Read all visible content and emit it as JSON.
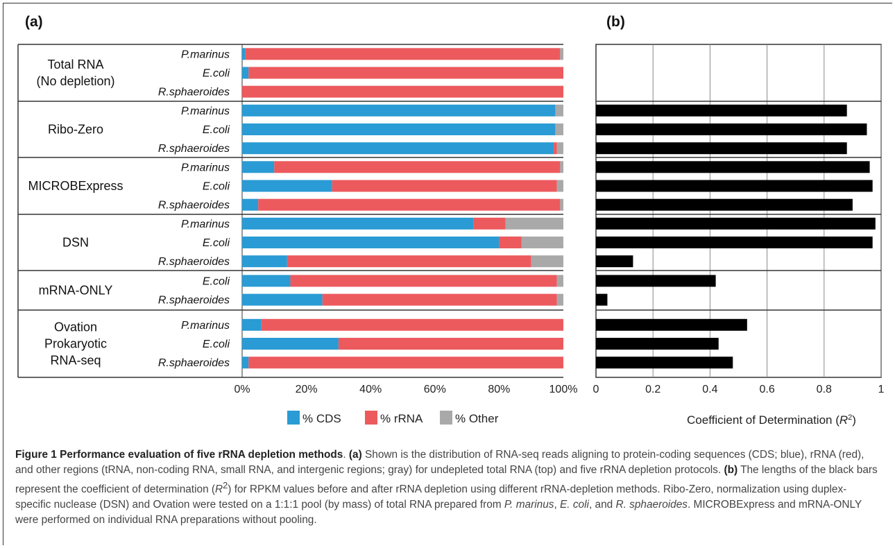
{
  "panel_a_label": "(a)",
  "panel_b_label": "(b)",
  "caption": {
    "title": "Figure 1 Performance evaluation of five rRNA depletion methods",
    "title_end": ".",
    "a_tag": "(a)",
    "text_a": " Shown is the distribution of RNA-seq reads aligning to protein-coding sequences (CDS; blue), rRNA (red), and other regions (tRNA, non-coding RNA, small RNA, and intergenic regions; gray) for undepleted total RNA (top) and five rRNA depletion protocols. ",
    "b_tag": "(b)",
    "text_b1": " The lengths of the black bars represent the coefficient of determination (",
    "r2_r": "R",
    "r2_sup": "2",
    "text_b2": ") for RPKM values before and after rRNA depletion using different rRNA-depletion methods. Ribo-Zero, normalization using duplex-specific nuclease (DSN) and Ovation were tested on a 1:1:1 pool (by mass) of total RNA prepared from ",
    "sp1": "P. marinus",
    "sep1": ", ",
    "sp2": "E. coli",
    "sep2": ", and ",
    "sp3": "R. sphaeroides",
    "text_c": ". MICROBExpress and mRNA-ONLY were performed on individual RNA preparations without pooling."
  },
  "colors": {
    "cds": "#2a9bd4",
    "rrna": "#ec5a5e",
    "other": "#a9a9a9",
    "r2": "#000000",
    "grid": "#888888",
    "border": "#333333"
  },
  "chart_data": [
    {
      "type": "bar",
      "orientation": "horizontal",
      "stacked": true,
      "x_tick_labels": [
        "0%",
        "20%",
        "40%",
        "60%",
        "80%",
        "100%"
      ],
      "xlim": [
        0,
        100
      ],
      "legend_position": "bottom",
      "groups": [
        {
          "label_lines": [
            "Total RNA",
            "(No depletion)"
          ],
          "rows": [
            {
              "species": "P.marinus",
              "cds": 1,
              "rrna": 98,
              "other": 1
            },
            {
              "species": "E.coli",
              "cds": 2,
              "rrna": 98,
              "other": 0
            },
            {
              "species": "R.sphaeroides",
              "cds": 0,
              "rrna": 100,
              "other": 0
            }
          ]
        },
        {
          "label_lines": [
            "Ribo-Zero"
          ],
          "rows": [
            {
              "species": "P.marinus",
              "cds": 97.5,
              "rrna": 0,
              "other": 2.5
            },
            {
              "species": "E.coli",
              "cds": 97.5,
              "rrna": 0,
              "other": 2.5
            },
            {
              "species": "R.sphaeroides",
              "cds": 97,
              "rrna": 1,
              "other": 2
            }
          ]
        },
        {
          "label_lines": [
            "MICROBExpress"
          ],
          "rows": [
            {
              "species": "P.marinus",
              "cds": 10,
              "rrna": 89,
              "other": 1
            },
            {
              "species": "E.coli",
              "cds": 28,
              "rrna": 70,
              "other": 2
            },
            {
              "species": "R.sphaeroides",
              "cds": 5,
              "rrna": 94,
              "other": 1
            }
          ]
        },
        {
          "label_lines": [
            "DSN"
          ],
          "rows": [
            {
              "species": "P.marinus",
              "cds": 72,
              "rrna": 10,
              "other": 18
            },
            {
              "species": "E.coli",
              "cds": 80,
              "rrna": 7,
              "other": 13
            },
            {
              "species": "R.sphaeroides",
              "cds": 14,
              "rrna": 76,
              "other": 10
            }
          ]
        },
        {
          "label_lines": [
            "mRNA-ONLY"
          ],
          "rows": [
            {
              "species": "E.coli",
              "cds": 15,
              "rrna": 83,
              "other": 2
            },
            {
              "species": "R.sphaeroides",
              "cds": 25,
              "rrna": 73,
              "other": 2
            }
          ]
        },
        {
          "label_lines": [
            "Ovation",
            "Prokaryotic",
            "RNA-seq"
          ],
          "rows": [
            {
              "species": "P.marinus",
              "cds": 6,
              "rrna": 94,
              "other": 0
            },
            {
              "species": "E.coli",
              "cds": 30,
              "rrna": 70,
              "other": 0
            },
            {
              "species": "R.sphaeroides",
              "cds": 2,
              "rrna": 98,
              "other": 0
            }
          ]
        }
      ],
      "series": [
        {
          "name": "% CDS",
          "key": "cds"
        },
        {
          "name": "% rRNA",
          "key": "rrna"
        },
        {
          "name": "% Other",
          "key": "other"
        }
      ]
    },
    {
      "type": "bar",
      "orientation": "horizontal",
      "xlabel": "Coefficient of Determination (R²)",
      "xlabel_prefix": "Coefficient of Determination (",
      "xlabel_var": "R",
      "xlabel_sup": "2",
      "xlabel_suffix": ")",
      "xlim": [
        0,
        1
      ],
      "x_tick_labels": [
        "0",
        "0.2",
        "0.4",
        "0.6",
        "0.8",
        "1"
      ],
      "grid": true,
      "values_by_group": [
        [
          null,
          null,
          null
        ],
        [
          0.88,
          0.95,
          0.88
        ],
        [
          0.96,
          0.97,
          0.9
        ],
        [
          0.98,
          0.97,
          0.13
        ],
        [
          0.42,
          0.04
        ],
        [
          0.53,
          0.43,
          0.48
        ]
      ]
    }
  ]
}
